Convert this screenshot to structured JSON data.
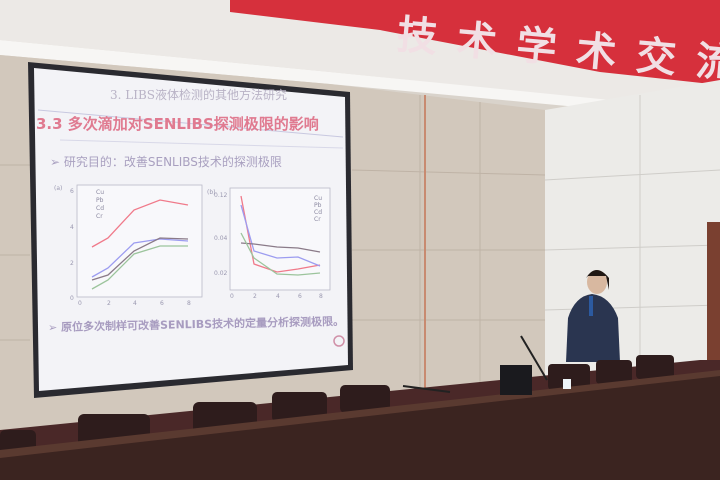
{
  "banner": {
    "text": "技术学术交流会"
  },
  "slide": {
    "header": "3. LIBS液体检测的其他方法研究",
    "title": "3.3 多次滴加对SENLIBS探测极限的影响",
    "bullet1": "➢ 研究目的：改善SENLIBS技术的探测极限",
    "bullet2": "➢ 原位多次制样可改善SENLIBS技术的定量分析探测极限。",
    "chart_a": {
      "panel_label": "(a)",
      "y_ticks": [
        "0",
        "2",
        "4",
        "6"
      ],
      "x_ticks": [
        "0",
        "2",
        "4",
        "6",
        "8"
      ],
      "legend": [
        "Cu",
        "Pb",
        "Cd",
        "Cr"
      ]
    },
    "chart_b": {
      "panel_label": "(b)",
      "y_ticks": [
        "0.02",
        "0.04",
        "0.12"
      ],
      "x_ticks": [
        "0",
        "2",
        "4",
        "6",
        "8"
      ],
      "legend": [
        "Cu",
        "Pb",
        "Cd",
        "Cr"
      ]
    },
    "series_colors": {
      "Cu": "#8a7a88",
      "Pb": "#9c9cf0",
      "Cd": "#9cc49c",
      "Cr": "#f07a8a"
    }
  },
  "colors": {
    "banner": "#d6303c",
    "wall": "#d4cbbf",
    "desk": "#3b2420",
    "screen": "#f4f4f8"
  }
}
